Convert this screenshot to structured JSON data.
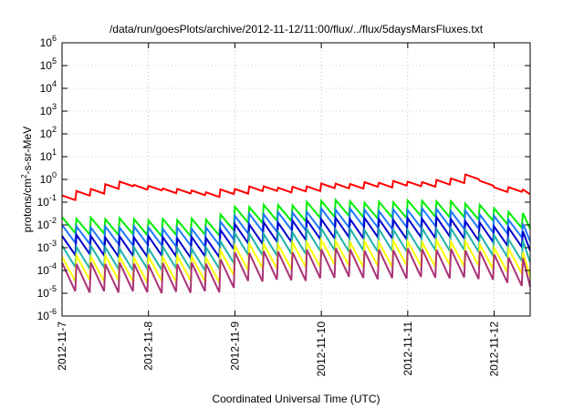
{
  "chart_data": {
    "type": "line",
    "title": "/data/run/goesPlots/archive/2012-11-12/11:00/flux/../flux/5daysMarsFluxes.txt",
    "xlabel": "Coordinated Universal Time (UTC)",
    "ylabel_parts": {
      "base": "protons/cm",
      "sup": "2",
      "rest": "-s-sr-MeV"
    },
    "yscale": "log",
    "ylim": [
      1e-06,
      1000000.0
    ],
    "y_ticks": [
      {
        "value": 1e-06,
        "base": "10",
        "exp": "-6"
      },
      {
        "value": 1e-05,
        "base": "10",
        "exp": "-5"
      },
      {
        "value": 0.0001,
        "base": "10",
        "exp": "-4"
      },
      {
        "value": 0.001,
        "base": "10",
        "exp": "-3"
      },
      {
        "value": 0.01,
        "base": "10",
        "exp": "-2"
      },
      {
        "value": 0.1,
        "base": "10",
        "exp": "-1"
      },
      {
        "value": 1,
        "base": "10",
        "exp": "0"
      },
      {
        "value": 10,
        "base": "10",
        "exp": "1"
      },
      {
        "value": 100,
        "base": "10",
        "exp": "2"
      },
      {
        "value": 1000,
        "base": "10",
        "exp": "3"
      },
      {
        "value": 10000,
        "base": "10",
        "exp": "4"
      },
      {
        "value": 100000,
        "base": "10",
        "exp": "5"
      },
      {
        "value": 1000000,
        "base": "10",
        "exp": "6"
      }
    ],
    "xlim": [
      "2012-11-07T00:00",
      "2012-11-12T10:00"
    ],
    "x_ticks": [
      "2012-11-7",
      "2012-11-8",
      "2012-11-9",
      "2012-11-10",
      "2012-11-11",
      "2012-11-12"
    ],
    "grid": true,
    "sawtooth_period_hours": 4,
    "series": [
      {
        "color": "#ff0000",
        "style": "peaks-only",
        "peaks": [
          [
            0,
            0.22
          ],
          [
            8,
            0.4
          ],
          [
            16,
            0.8
          ],
          [
            24,
            0.5
          ],
          [
            32,
            0.35
          ],
          [
            40,
            0.3
          ],
          [
            48,
            0.4
          ],
          [
            56,
            0.5
          ],
          [
            64,
            0.45
          ],
          [
            72,
            0.6
          ],
          [
            80,
            0.7
          ],
          [
            88,
            0.75
          ],
          [
            96,
            0.8
          ],
          [
            104,
            0.9
          ],
          [
            112,
            1.5
          ],
          [
            120,
            0.5
          ],
          [
            130,
            0.35
          ]
        ],
        "peak_to_trough": 1.6
      },
      {
        "color": "#00ee00",
        "peaks": [
          [
            0,
            0.022
          ],
          [
            16,
            0.018
          ],
          [
            40,
            0.017
          ],
          [
            48,
            0.06
          ],
          [
            64,
            0.08
          ],
          [
            72,
            0.12
          ],
          [
            88,
            0.1
          ],
          [
            104,
            0.12
          ],
          [
            112,
            0.09
          ],
          [
            130,
            0.028
          ]
        ],
        "peak_to_trough": 5
      },
      {
        "color": "#1e78ff",
        "peaks": [
          [
            0,
            0.009
          ],
          [
            16,
            0.008
          ],
          [
            40,
            0.007
          ],
          [
            48,
            0.028
          ],
          [
            64,
            0.035
          ],
          [
            72,
            0.05
          ],
          [
            88,
            0.045
          ],
          [
            104,
            0.05
          ],
          [
            112,
            0.04
          ],
          [
            130,
            0.011
          ]
        ],
        "peak_to_trough": 6
      },
      {
        "color": "#0000cc",
        "peaks": [
          [
            0,
            0.0035
          ],
          [
            16,
            0.003
          ],
          [
            40,
            0.0028
          ],
          [
            48,
            0.011
          ],
          [
            64,
            0.014
          ],
          [
            72,
            0.02
          ],
          [
            88,
            0.018
          ],
          [
            104,
            0.02
          ],
          [
            112,
            0.016
          ],
          [
            130,
            0.0045
          ]
        ],
        "peak_to_trough": 7
      },
      {
        "color": "#20b2aa",
        "peaks": [
          [
            0,
            0.0012
          ],
          [
            16,
            0.001
          ],
          [
            40,
            0.001
          ],
          [
            48,
            0.004
          ],
          [
            64,
            0.005
          ],
          [
            72,
            0.007
          ],
          [
            88,
            0.006
          ],
          [
            104,
            0.007
          ],
          [
            112,
            0.006
          ],
          [
            130,
            0.0016
          ]
        ],
        "peak_to_trough": 9
      },
      {
        "color": "#ffff00",
        "peaks": [
          [
            0,
            0.00045
          ],
          [
            16,
            0.0004
          ],
          [
            40,
            0.0004
          ],
          [
            48,
            0.0013
          ],
          [
            64,
            0.0016
          ],
          [
            72,
            0.002
          ],
          [
            88,
            0.0018
          ],
          [
            104,
            0.002
          ],
          [
            112,
            0.0018
          ],
          [
            130,
            0.0006
          ]
        ],
        "peak_to_trough": 12
      },
      {
        "color": "#aa3377",
        "peaks": [
          [
            0,
            0.00022
          ],
          [
            16,
            0.0002
          ],
          [
            40,
            0.0002
          ],
          [
            48,
            0.0006
          ],
          [
            64,
            0.0007
          ],
          [
            72,
            0.0009
          ],
          [
            88,
            0.0008
          ],
          [
            104,
            0.0009
          ],
          [
            112,
            0.0008
          ],
          [
            130,
            0.0003
          ]
        ],
        "peak_to_trough": 18
      }
    ]
  }
}
